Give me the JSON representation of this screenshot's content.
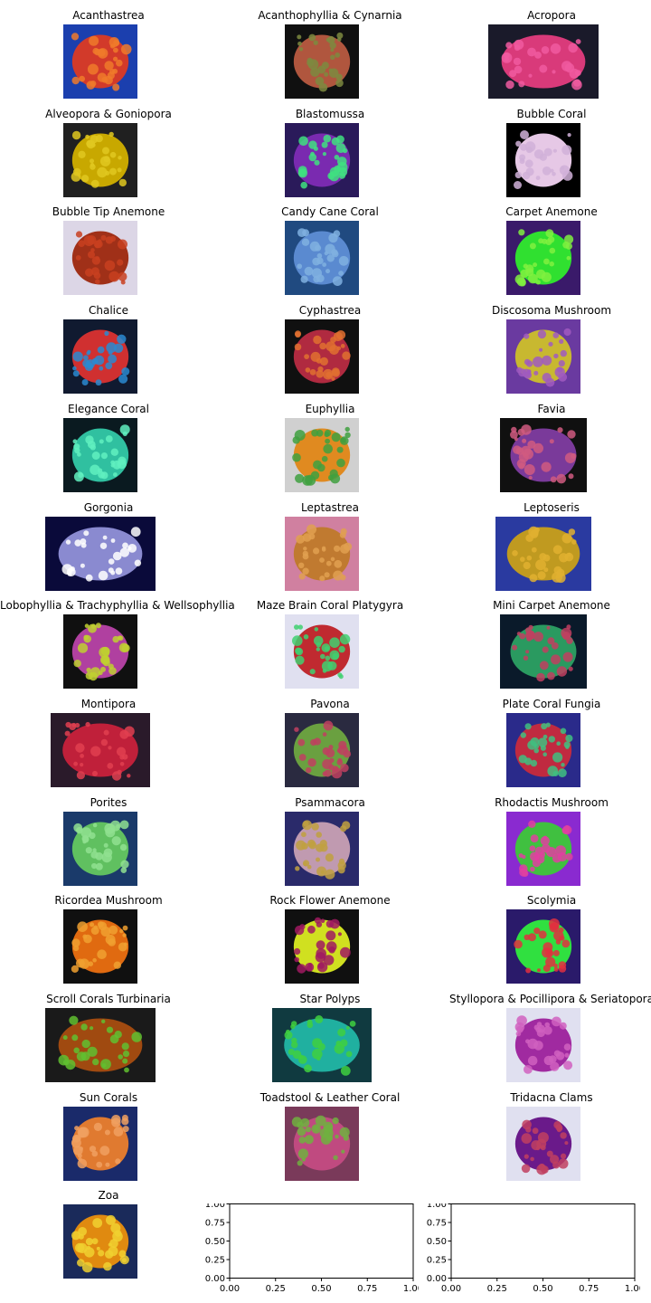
{
  "figure": {
    "background": "#ffffff",
    "panels": [
      {
        "title": "Acanthastrea",
        "colors": [
          "#1b3fae",
          "#d23a2a",
          "#f07a2a"
        ]
      },
      {
        "title": "Acanthophyllia & Cynarnia",
        "colors": [
          "#101010",
          "#b0563e",
          "#7c8a40"
        ]
      },
      {
        "title": "Acropora",
        "colors": [
          "#1a1a2a",
          "#d93a7a",
          "#f05aa0"
        ]
      },
      {
        "title": "Alveopora & Goniopora",
        "colors": [
          "#202020",
          "#c8a800",
          "#e0c820"
        ]
      },
      {
        "title": "Blastomussa",
        "colors": [
          "#2a1a5a",
          "#7a2ab0",
          "#40e080"
        ]
      },
      {
        "title": "Bubble Coral",
        "colors": [
          "#000000",
          "#e6c8e6",
          "#d0b0d8"
        ]
      },
      {
        "title": "Bubble Tip Anemone",
        "colors": [
          "#dcd6e6",
          "#a03018",
          "#c84020"
        ]
      },
      {
        "title": "Candy Cane Coral",
        "colors": [
          "#204a80",
          "#5a8ad0",
          "#80b0e0"
        ]
      },
      {
        "title": "Carpet Anemone",
        "colors": [
          "#3a1a6a",
          "#30e030",
          "#80f040"
        ]
      },
      {
        "title": "Chalice",
        "colors": [
          "#101a30",
          "#d03030",
          "#2a8ad0"
        ]
      },
      {
        "title": "Cyphastrea",
        "colors": [
          "#101010",
          "#b02a40",
          "#e07030"
        ]
      },
      {
        "title": "Discosoma Mushroom",
        "colors": [
          "#6a3aa0",
          "#c8b830",
          "#a05ac0"
        ]
      },
      {
        "title": "Elegance Coral",
        "colors": [
          "#0a1a20",
          "#30c0a0",
          "#60f0c0"
        ]
      },
      {
        "title": "Euphyllia",
        "colors": [
          "#d0d0d0",
          "#e08a20",
          "#40a040"
        ]
      },
      {
        "title": "Favia",
        "colors": [
          "#101010",
          "#7a3a9a",
          "#d05a80"
        ]
      },
      {
        "title": "Gorgonia",
        "colors": [
          "#0a0a3a",
          "#8a8ad0",
          "#ffffff"
        ]
      },
      {
        "title": "Leptastrea",
        "colors": [
          "#d080a0",
          "#c07a30",
          "#e0a050"
        ]
      },
      {
        "title": "Leptoseris",
        "colors": [
          "#2a3aa0",
          "#c09a20",
          "#e0b030"
        ]
      },
      {
        "title": "Lobophyllia & Trachyphyllia & Wellsophyllia",
        "colors": [
          "#101010",
          "#b040a0",
          "#c0d030"
        ]
      },
      {
        "title": "Maze Brain Coral Platygyra",
        "colors": [
          "#e0e0f0",
          "#c02a30",
          "#40d070"
        ]
      },
      {
        "title": "Mini Carpet Anemone",
        "colors": [
          "#0a1a2a",
          "#2a9a60",
          "#c04060"
        ]
      },
      {
        "title": "Montipora",
        "colors": [
          "#2a1a2a",
          "#c0203a",
          "#e04050"
        ]
      },
      {
        "title": "Pavona",
        "colors": [
          "#2a2a40",
          "#6aa040",
          "#c04060"
        ]
      },
      {
        "title": "Plate Coral Fungia",
        "colors": [
          "#2a2a8a",
          "#c02a40",
          "#40c080"
        ]
      },
      {
        "title": "Porites",
        "colors": [
          "#1a3a6a",
          "#60c060",
          "#90e090"
        ]
      },
      {
        "title": "Psammacora",
        "colors": [
          "#2a2a6a",
          "#c09ab0",
          "#c0a040"
        ]
      },
      {
        "title": "Rhodactis Mushroom",
        "colors": [
          "#8a2ad0",
          "#40c040",
          "#e040a0"
        ]
      },
      {
        "title": "Ricordea Mushroom",
        "colors": [
          "#101010",
          "#e06a10",
          "#f0a030"
        ]
      },
      {
        "title": "Rock Flower Anemone",
        "colors": [
          "#101010",
          "#d0e020",
          "#a01a60"
        ]
      },
      {
        "title": "Scolymia",
        "colors": [
          "#2a1a6a",
          "#30e040",
          "#e03040"
        ]
      },
      {
        "title": "Scroll Corals Turbinaria",
        "colors": [
          "#1a1a1a",
          "#a04a10",
          "#60c030"
        ]
      },
      {
        "title": "Star Polyps",
        "colors": [
          "#103a40",
          "#20b0a0",
          "#40d040"
        ]
      },
      {
        "title": "Styllopora & Pocillipora & Seriatopora",
        "colors": [
          "#e0e0f0",
          "#a02aa0",
          "#d060c0"
        ]
      },
      {
        "title": "Sun Corals",
        "colors": [
          "#1a2a6a",
          "#e07a30",
          "#f0a060"
        ]
      },
      {
        "title": "Toadstool & Leather Coral",
        "colors": [
          "#7a3a5a",
          "#c04a80",
          "#70b040"
        ]
      },
      {
        "title": "Tridacna Clams",
        "colors": [
          "#e0e0f0",
          "#6a1a8a",
          "#c04060"
        ]
      },
      {
        "title": "Zoa",
        "colors": [
          "#1a2a5a",
          "#e08a10",
          "#f0d030"
        ]
      }
    ]
  },
  "chart_data": [
    {
      "type": "scatter",
      "title": "",
      "xlabel": "",
      "ylabel": "",
      "xlim": [
        0,
        1
      ],
      "ylim": [
        0,
        1
      ],
      "xticks": [
        "0.00",
        "0.25",
        "0.50",
        "0.75",
        "1.00"
      ],
      "yticks": [
        "0.00",
        "0.25",
        "0.50",
        "0.75",
        "1.00"
      ],
      "series": [],
      "grid": false
    },
    {
      "type": "scatter",
      "title": "",
      "xlabel": "",
      "ylabel": "",
      "xlim": [
        0,
        1
      ],
      "ylim": [
        0,
        1
      ],
      "xticks": [
        "0.00",
        "0.25",
        "0.50",
        "0.75",
        "1.00"
      ],
      "yticks": [
        "0.00",
        "0.25",
        "0.50",
        "0.75",
        "1.00"
      ],
      "series": [],
      "grid": false
    }
  ]
}
